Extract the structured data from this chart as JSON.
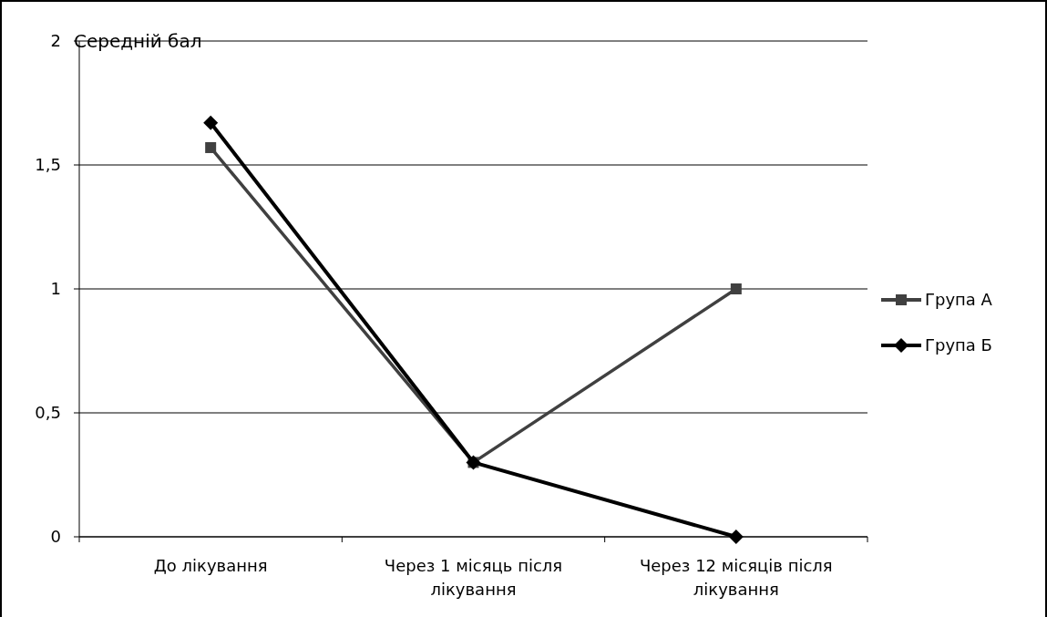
{
  "chart_data": {
    "type": "line",
    "ylabel": "Середній бал",
    "categories": [
      "До лікування",
      "Через 1 місяць після лікування",
      "Через 12 місяців після лікування"
    ],
    "series": [
      {
        "name": "Група А",
        "color": "#404040",
        "marker": "square",
        "values": [
          1.57,
          0.3,
          1
        ]
      },
      {
        "name": "Група Б",
        "color": "#000000",
        "marker": "diamond",
        "values": [
          1.67,
          0.3,
          0
        ]
      }
    ],
    "ylim": [
      0,
      2
    ],
    "yticks": [
      0,
      {
        "value": 0.5,
        "label": "0,5"
      },
      1,
      {
        "value": 1.5,
        "label": "1,5"
      },
      2
    ],
    "grid": "y",
    "legend": "right"
  }
}
